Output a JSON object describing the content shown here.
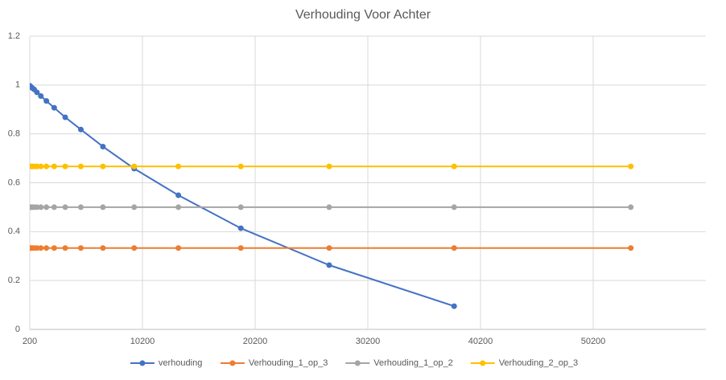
{
  "chart_data": {
    "type": "scatter",
    "title": "Verhouding Voor Achter",
    "x": [
      209,
      296,
      418,
      592,
      837,
      1183,
      1673,
      2366,
      3346,
      4732,
      6692,
      9465,
      13385,
      18929,
      26770,
      37858,
      53538
    ],
    "series": [
      {
        "name": "verhouding",
        "color": "#4472c4",
        "values": [
          0.997,
          0.993,
          0.988,
          0.982,
          0.97,
          0.955,
          0.935,
          0.907,
          0.868,
          0.818,
          0.748,
          0.658,
          0.549,
          0.414,
          0.263,
          0.095,
          null
        ]
      },
      {
        "name": "Verhouding_1_op_3",
        "color": "#ed7d31",
        "values": [
          0.333,
          0.333,
          0.333,
          0.333,
          0.333,
          0.333,
          0.333,
          0.333,
          0.333,
          0.333,
          0.333,
          0.333,
          0.333,
          0.333,
          0.333,
          0.333,
          0.333
        ]
      },
      {
        "name": "Verhouding_1_op_2",
        "color": "#a5a5a5",
        "values": [
          0.5,
          0.5,
          0.5,
          0.5,
          0.5,
          0.5,
          0.5,
          0.5,
          0.5,
          0.5,
          0.5,
          0.5,
          0.5,
          0.5,
          0.5,
          0.5,
          0.5
        ]
      },
      {
        "name": "Verhouding_2_op_3",
        "color": "#ffc000",
        "values": [
          0.667,
          0.667,
          0.667,
          0.667,
          0.667,
          0.667,
          0.667,
          0.667,
          0.667,
          0.667,
          0.667,
          0.667,
          0.667,
          0.667,
          0.667,
          0.667,
          0.667
        ]
      }
    ],
    "xlim": [
      200,
      60200
    ],
    "xticks": [
      200,
      10200,
      20200,
      30200,
      40200,
      50200
    ],
    "ylim": [
      0,
      1.2
    ],
    "yticks": [
      0,
      0.2,
      0.4,
      0.6,
      0.8,
      1,
      1.2
    ],
    "grid": true,
    "legend": "bottom"
  }
}
